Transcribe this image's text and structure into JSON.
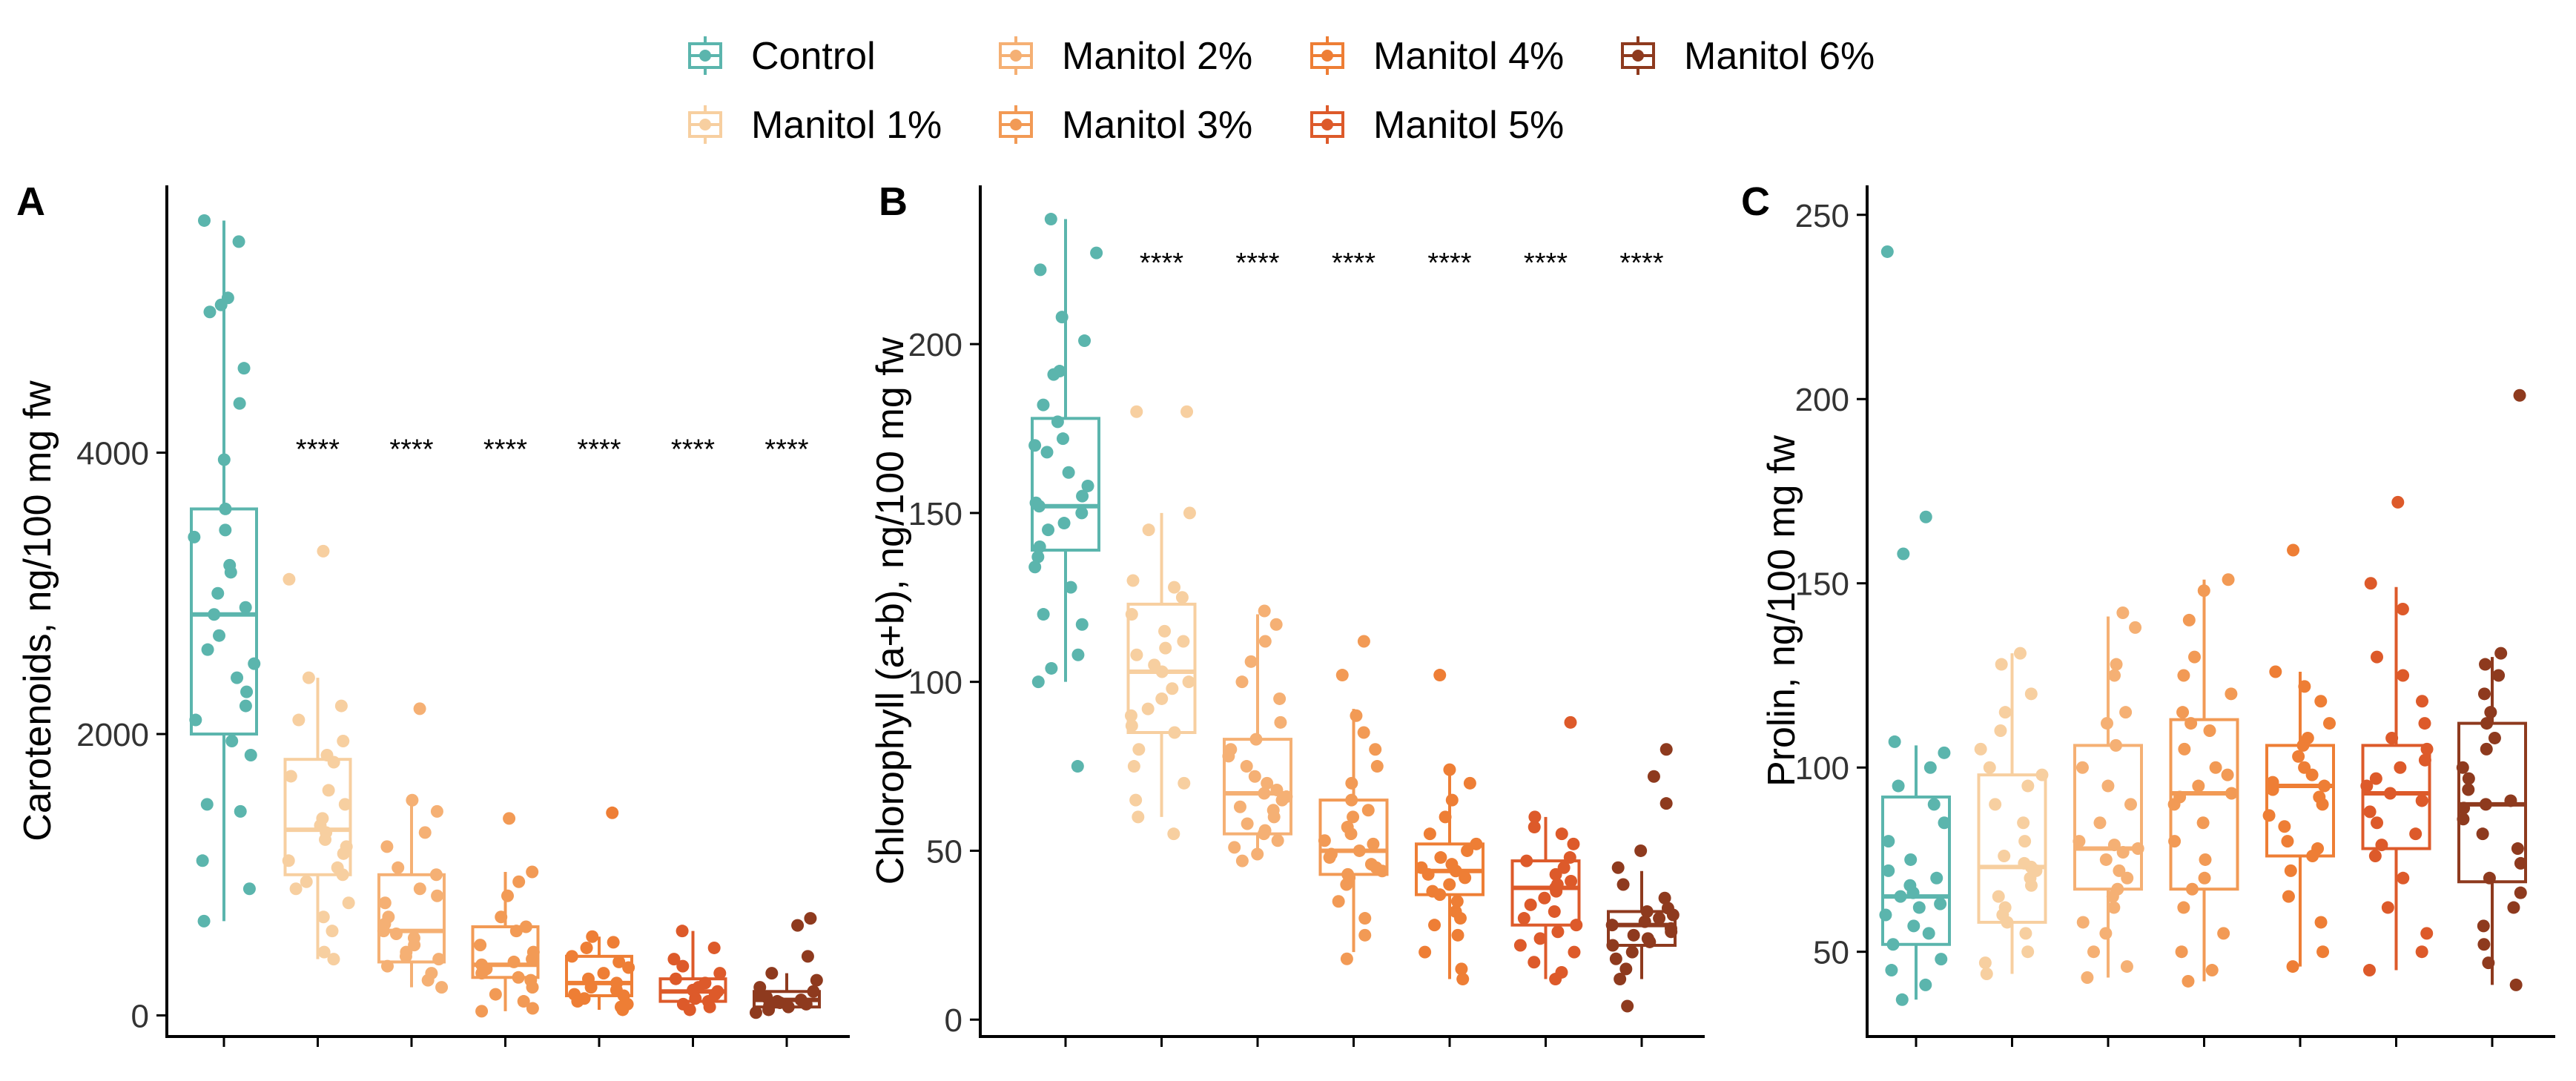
{
  "legend": {
    "items": [
      {
        "label": "Control",
        "color": "#5BB5AD"
      },
      {
        "label": "Manitol 1%",
        "color": "#F7CFA0"
      },
      {
        "label": "Manitol 2%",
        "color": "#F5B074"
      },
      {
        "label": "Manitol 3%",
        "color": "#F29A55"
      },
      {
        "label": "Manitol 4%",
        "color": "#EE7E35"
      },
      {
        "label": "Manitol 5%",
        "color": "#DD5A2A"
      },
      {
        "label": "Manitol 6%",
        "color": "#8E3A1E"
      }
    ]
  },
  "chart_data": [
    {
      "type": "box",
      "panel_label": "A",
      "ylabel": "Carotenoids, ng/100 mg fw",
      "ylim": [
        -150,
        5900
      ],
      "yticks": [
        0,
        2000,
        4000
      ],
      "significance": "****",
      "groups": [
        {
          "name": "Control",
          "min": 670,
          "q1": 2000,
          "median": 2850,
          "q3": 3600,
          "max": 5650,
          "points": [
            5650,
            5500,
            5100,
            5050,
            5000,
            4600,
            4350,
            3950,
            3600,
            3450,
            3400,
            3200,
            3150,
            3000,
            2900,
            2850,
            2700,
            2600,
            2500,
            2400,
            2300,
            2200,
            2100,
            1950,
            1850,
            1500,
            1450,
            1100,
            900,
            670
          ]
        },
        {
          "name": "Manitol 1%",
          "min": 400,
          "q1": 1000,
          "median": 1320,
          "q3": 1820,
          "max": 2400,
          "points": [
            3300,
            3100,
            2400,
            2200,
            2100,
            1950,
            1850,
            1800,
            1700,
            1600,
            1500,
            1400,
            1350,
            1300,
            1250,
            1200,
            1150,
            1100,
            1050,
            1000,
            950,
            900,
            800,
            700,
            600,
            450,
            400
          ]
        },
        {
          "name": "Manitol 2%",
          "min": 200,
          "q1": 380,
          "median": 600,
          "q3": 1000,
          "max": 1530,
          "points": [
            2180,
            1530,
            1450,
            1300,
            1200,
            1050,
            1000,
            900,
            850,
            800,
            700,
            650,
            600,
            580,
            550,
            500,
            450,
            420,
            400,
            350,
            300,
            250,
            200
          ]
        },
        {
          "name": "Manitol 3%",
          "min": 30,
          "q1": 270,
          "median": 360,
          "q3": 630,
          "max": 1020,
          "points": [
            1400,
            1020,
            950,
            850,
            700,
            630,
            600,
            500,
            450,
            400,
            380,
            360,
            330,
            300,
            270,
            250,
            200,
            150,
            100,
            50,
            30
          ]
        },
        {
          "name": "Manitol 4%",
          "min": 40,
          "q1": 140,
          "median": 230,
          "q3": 420,
          "max": 560,
          "points": [
            1440,
            560,
            520,
            480,
            420,
            380,
            340,
            300,
            260,
            230,
            200,
            180,
            150,
            140,
            120,
            100,
            80,
            60,
            40
          ]
        },
        {
          "name": "Manitol 5%",
          "min": 40,
          "q1": 100,
          "median": 170,
          "q3": 260,
          "max": 600,
          "points": [
            600,
            480,
            400,
            350,
            300,
            260,
            230,
            200,
            180,
            170,
            150,
            120,
            100,
            80,
            60,
            40
          ]
        },
        {
          "name": "Manitol 6%",
          "min": 20,
          "q1": 60,
          "median": 110,
          "q3": 170,
          "max": 300,
          "points": [
            690,
            640,
            420,
            300,
            250,
            200,
            170,
            150,
            130,
            110,
            100,
            90,
            80,
            70,
            60,
            40,
            20
          ]
        }
      ]
    },
    {
      "type": "box",
      "panel_label": "B",
      "ylabel": "Chlorophyll (a+b), ng/100 mg fw",
      "ylim": [
        -5,
        247
      ],
      "yticks": [
        0,
        50,
        100,
        150,
        200
      ],
      "significance": "****",
      "groups": [
        {
          "name": "Control",
          "min": 100,
          "q1": 139,
          "median": 152,
          "q3": 178,
          "max": 237,
          "points": [
            237,
            227,
            222,
            208,
            201,
            192,
            191,
            182,
            177,
            172,
            170,
            168,
            162,
            158,
            155,
            153,
            152,
            150,
            147,
            145,
            140,
            137,
            134,
            128,
            120,
            117,
            108,
            104,
            100,
            75
          ]
        },
        {
          "name": "Manitol 1%",
          "min": 60,
          "q1": 85,
          "median": 103,
          "q3": 123,
          "max": 150,
          "points": [
            180,
            180,
            150,
            145,
            130,
            128,
            125,
            120,
            115,
            112,
            110,
            108,
            105,
            103,
            100,
            98,
            95,
            92,
            90,
            87,
            85,
            80,
            75,
            70,
            65,
            60,
            55
          ]
        },
        {
          "name": "Manitol 2%",
          "min": 48,
          "q1": 55,
          "median": 67,
          "q3": 83,
          "max": 120,
          "points": [
            121,
            117,
            112,
            106,
            100,
            95,
            88,
            83,
            80,
            78,
            75,
            72,
            70,
            68,
            67,
            66,
            65,
            63,
            62,
            60,
            58,
            56,
            55,
            53,
            51,
            49,
            47
          ]
        },
        {
          "name": "Manitol 3%",
          "min": 20,
          "q1": 43,
          "median": 50,
          "q3": 65,
          "max": 92,
          "points": [
            112,
            102,
            90,
            85,
            80,
            75,
            70,
            65,
            62,
            60,
            57,
            55,
            53,
            52,
            50,
            49,
            48,
            46,
            45,
            44,
            43,
            42,
            40,
            35,
            30,
            25,
            18
          ]
        },
        {
          "name": "Manitol 4%",
          "min": 12,
          "q1": 37,
          "median": 44,
          "q3": 52,
          "max": 74,
          "points": [
            102,
            74,
            70,
            65,
            60,
            55,
            52,
            50,
            48,
            46,
            45,
            44,
            43,
            42,
            40,
            38,
            37,
            35,
            32,
            30,
            28,
            25,
            20,
            15,
            12
          ]
        },
        {
          "name": "Manitol 5%",
          "min": 12,
          "q1": 28,
          "median": 39,
          "q3": 47,
          "max": 60,
          "points": [
            88,
            60,
            57,
            55,
            52,
            48,
            47,
            45,
            43,
            41,
            40,
            39,
            38,
            36,
            34,
            32,
            30,
            28,
            26,
            24,
            22,
            20,
            17,
            14,
            12
          ]
        },
        {
          "name": "Manitol 6%",
          "min": 12,
          "q1": 22,
          "median": 28,
          "q3": 32,
          "max": 44,
          "points": [
            80,
            72,
            64,
            50,
            45,
            40,
            36,
            33,
            32,
            31,
            30,
            29,
            28,
            27,
            26,
            25,
            24,
            23,
            22,
            20,
            18,
            15,
            12,
            4
          ]
        }
      ]
    },
    {
      "type": "box",
      "panel_label": "C",
      "ylabel": "Prolin, ng/100 mg fw",
      "ylim": [
        27,
        258
      ],
      "yticks": [
        50,
        100,
        150,
        200,
        250
      ],
      "groups": [
        {
          "name": "Control",
          "min": 37,
          "q1": 52,
          "median": 65,
          "q3": 92,
          "max": 106,
          "points": [
            240,
            168,
            158,
            107,
            104,
            100,
            95,
            90,
            85,
            80,
            75,
            72,
            70,
            68,
            66,
            65,
            63,
            62,
            60,
            57,
            55,
            52,
            48,
            45,
            41,
            37
          ]
        },
        {
          "name": "Manitol 1%",
          "min": 44,
          "q1": 58,
          "median": 73,
          "q3": 98,
          "max": 131,
          "points": [
            131,
            128,
            120,
            115,
            110,
            105,
            100,
            98,
            95,
            90,
            85,
            80,
            76,
            74,
            73,
            72,
            70,
            68,
            65,
            62,
            60,
            58,
            55,
            50,
            47,
            44
          ]
        },
        {
          "name": "Manitol 2%",
          "min": 43,
          "q1": 67,
          "median": 78,
          "q3": 106,
          "max": 141,
          "points": [
            142,
            138,
            128,
            125,
            115,
            112,
            106,
            100,
            95,
            90,
            85,
            80,
            79,
            78,
            77,
            75,
            72,
            70,
            67,
            65,
            62,
            58,
            55,
            50,
            46,
            43
          ]
        },
        {
          "name": "Manitol 3%",
          "min": 42,
          "q1": 67,
          "median": 93,
          "q3": 113,
          "max": 151,
          "points": [
            151,
            148,
            140,
            130,
            125,
            120,
            115,
            112,
            110,
            105,
            100,
            98,
            95,
            93,
            92,
            90,
            85,
            80,
            75,
            70,
            67,
            62,
            55,
            50,
            45,
            42
          ]
        },
        {
          "name": "Manitol 4%",
          "min": 46,
          "q1": 76,
          "median": 95,
          "q3": 106,
          "max": 126,
          "points": [
            159,
            126,
            122,
            118,
            112,
            108,
            106,
            103,
            100,
            98,
            96,
            95,
            94,
            92,
            90,
            87,
            84,
            80,
            78,
            76,
            72,
            65,
            58,
            50,
            46
          ]
        },
        {
          "name": "Manitol 5%",
          "min": 45,
          "q1": 78,
          "median": 93,
          "q3": 106,
          "max": 149,
          "points": [
            172,
            150,
            143,
            130,
            125,
            118,
            112,
            108,
            105,
            102,
            100,
            97,
            95,
            93,
            91,
            88,
            85,
            82,
            79,
            76,
            70,
            62,
            55,
            50,
            45
          ]
        },
        {
          "name": "Manitol 6%",
          "min": 41,
          "q1": 69,
          "median": 90,
          "q3": 112,
          "max": 130,
          "points": [
            201,
            131,
            128,
            125,
            120,
            115,
            112,
            108,
            105,
            100,
            97,
            94,
            91,
            90,
            89,
            86,
            82,
            78,
            74,
            70,
            66,
            62,
            57,
            52,
            47,
            41
          ]
        }
      ]
    }
  ]
}
